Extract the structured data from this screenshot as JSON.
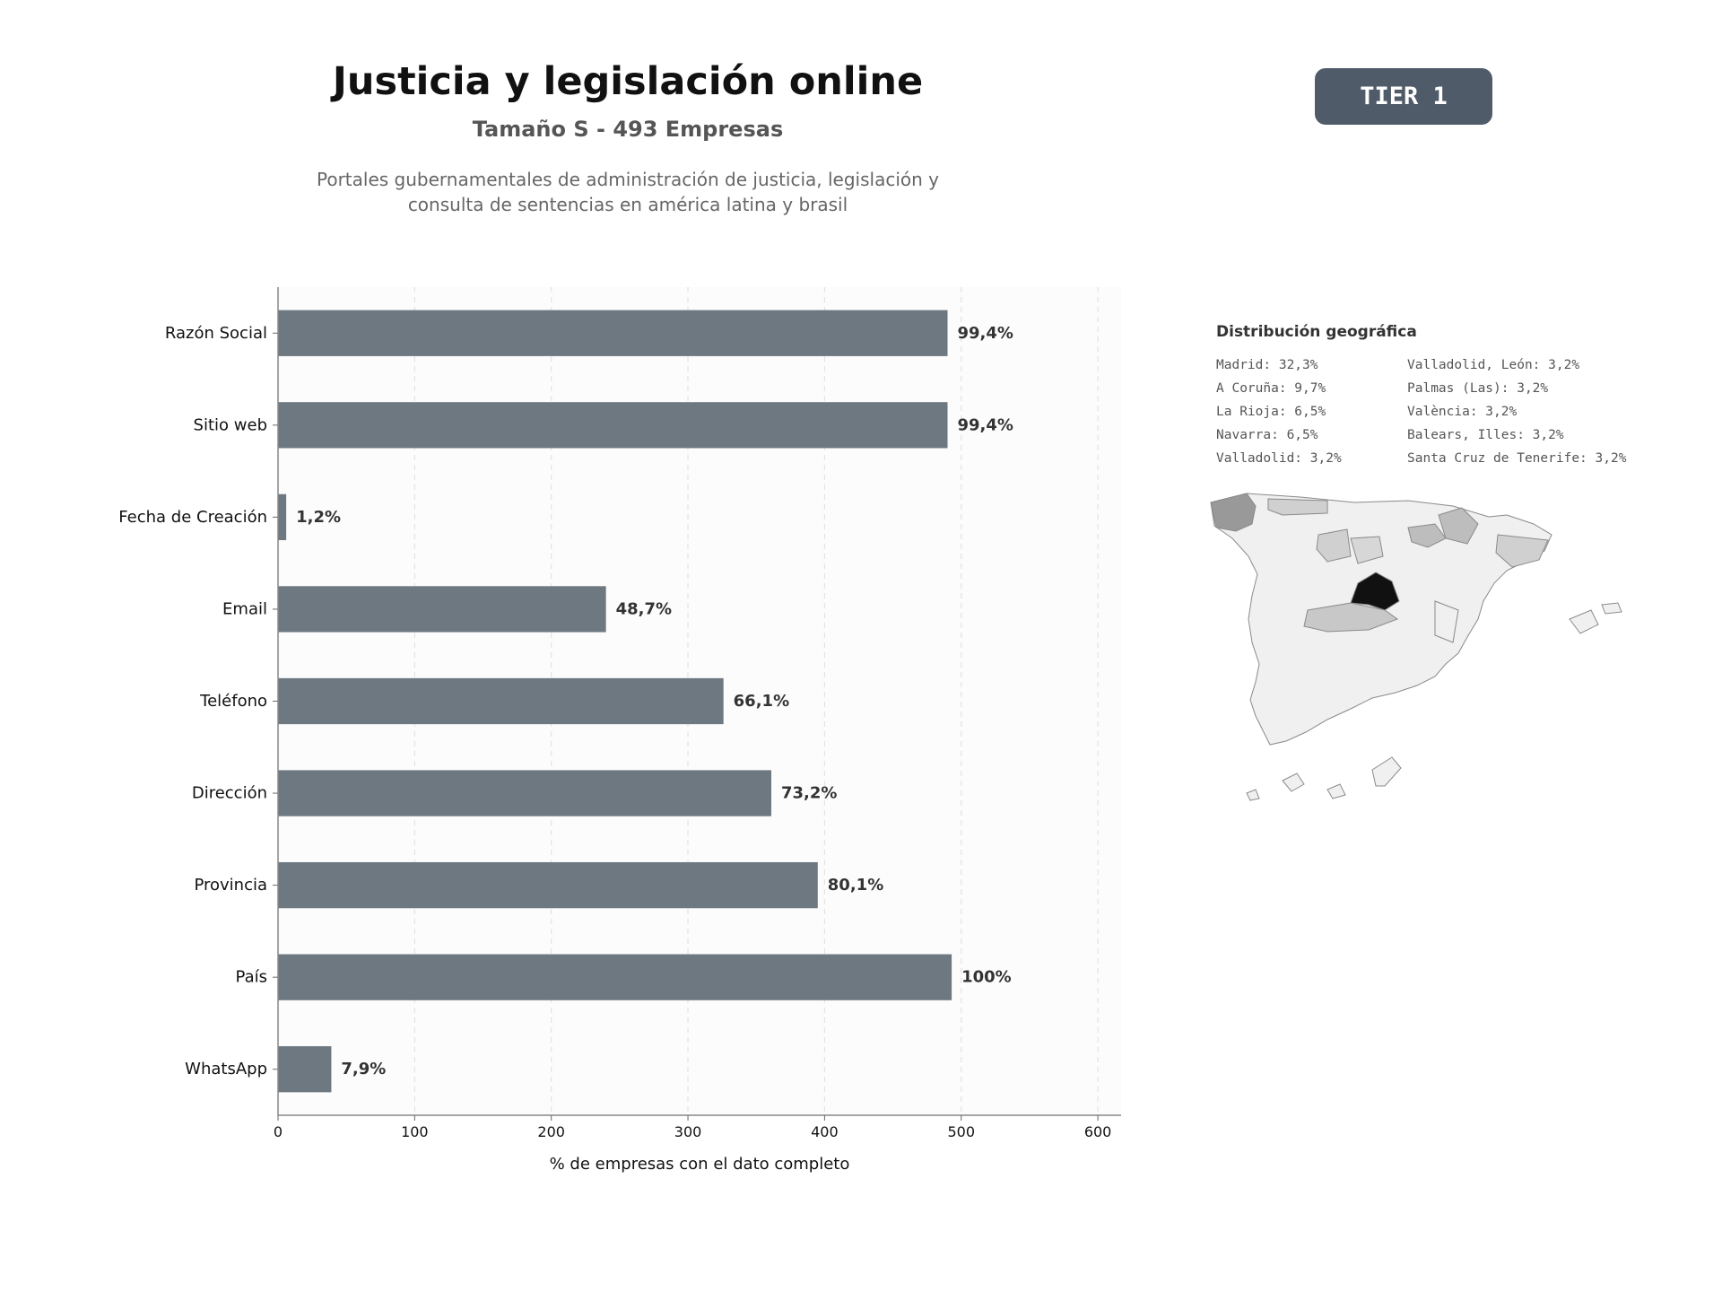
{
  "header": {
    "title": "Justicia y legislación online",
    "subtitle": "Tamaño S - 493 Empresas",
    "description_line1": "Portales gubernamentales de administración de justicia, legislación y",
    "description_line2": "consulta de sentencias en américa latina y brasil",
    "tier": "TIER 1"
  },
  "chart_data": {
    "type": "bar",
    "orientation": "horizontal",
    "categories": [
      "Razón Social",
      "Sitio web",
      "Fecha de Creación",
      "Email",
      "Teléfono",
      "Dirección",
      "Provincia",
      "País",
      "WhatsApp"
    ],
    "values": [
      490,
      490,
      6,
      240,
      326,
      361,
      395,
      493,
      39
    ],
    "data_labels": [
      "99,4%",
      "99,4%",
      "1,2%",
      "48,7%",
      "66,1%",
      "73,2%",
      "80,1%",
      "100%",
      "7,9%"
    ],
    "xlabel": "% de empresas con el dato completo",
    "xlim": [
      0,
      617
    ],
    "xticks": [
      "0",
      "100",
      "200",
      "300",
      "400",
      "500",
      "600"
    ],
    "xtick_values": [
      0,
      100,
      200,
      300,
      400,
      500,
      600
    ],
    "grid": "vertical dashed",
    "bar_color": "#6e7881"
  },
  "geo": {
    "title": "Distribución geográfica",
    "items": [
      "Madrid: 32,3%",
      "Valladolid, León: 3,2%",
      "A Coruña: 9,7%",
      "Palmas (Las): 3,2%",
      "La Rioja: 6,5%",
      "València: 3,2%",
      "Navarra: 6,5%",
      "Balears, Illes: 3,2%",
      "Valladolid: 3,2%",
      "Santa Cruz de Tenerife: 3,2%"
    ]
  },
  "colors": {
    "badge": "#4f5b69",
    "bar": "#6e7881",
    "map_highlight": "#111111",
    "map_base": "#f0f0f0"
  }
}
